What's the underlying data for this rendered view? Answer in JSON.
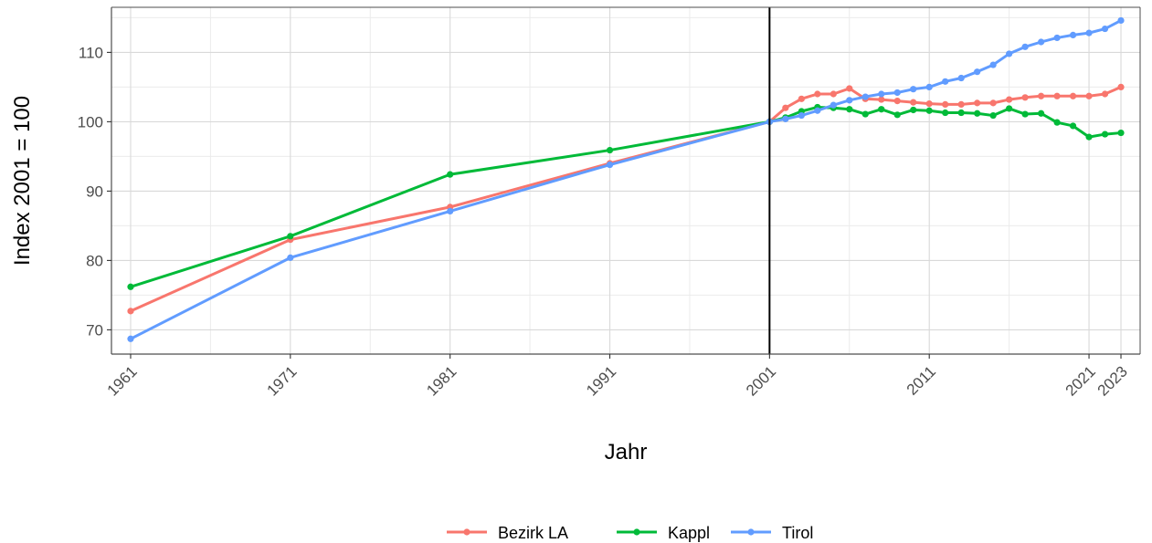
{
  "chart_data": {
    "type": "line",
    "xlabel": "Jahr",
    "ylabel": "Index 2001 = 100",
    "xlim": [
      1959.8,
      2024.2
    ],
    "ylim": [
      66.5,
      116.5
    ],
    "x_ticks": [
      1961,
      1971,
      1981,
      1991,
      2001,
      2011,
      2021,
      2023
    ],
    "y_ticks": [
      70,
      80,
      90,
      100,
      110
    ],
    "vertical_reference_line": 2001,
    "grid": true,
    "legend_position": "bottom",
    "series": [
      {
        "name": "Bezirk LA",
        "color": "#F8766D",
        "x": [
          1961,
          1971,
          1981,
          1991,
          2001,
          2002,
          2003,
          2004,
          2005,
          2006,
          2007,
          2008,
          2009,
          2010,
          2011,
          2012,
          2013,
          2014,
          2015,
          2016,
          2017,
          2018,
          2019,
          2020,
          2021,
          2022,
          2023
        ],
        "y": [
          72.7,
          83.0,
          87.7,
          94.0,
          100.0,
          102.0,
          103.3,
          104.0,
          104.0,
          104.8,
          103.3,
          103.2,
          103.0,
          102.8,
          102.6,
          102.5,
          102.5,
          102.7,
          102.7,
          103.2,
          103.5,
          103.7,
          103.7,
          103.7,
          103.7,
          104.0,
          105.0
        ]
      },
      {
        "name": "Kappl",
        "color": "#00BA38",
        "x": [
          1961,
          1971,
          1981,
          1991,
          2001,
          2002,
          2003,
          2004,
          2005,
          2006,
          2007,
          2008,
          2009,
          2010,
          2011,
          2012,
          2013,
          2014,
          2015,
          2016,
          2017,
          2018,
          2019,
          2020,
          2021,
          2022,
          2023
        ],
        "y": [
          76.2,
          83.5,
          92.4,
          95.9,
          100.0,
          100.6,
          101.5,
          102.1,
          102.0,
          101.8,
          101.1,
          101.8,
          101.0,
          101.7,
          101.6,
          101.3,
          101.3,
          101.2,
          100.9,
          101.9,
          101.1,
          101.2,
          99.9,
          99.4,
          97.8,
          98.2,
          98.4
        ]
      },
      {
        "name": "Tirol",
        "color": "#619CFF",
        "x": [
          1961,
          1971,
          1981,
          1991,
          2001,
          2002,
          2003,
          2004,
          2005,
          2006,
          2007,
          2008,
          2009,
          2010,
          2011,
          2012,
          2013,
          2014,
          2015,
          2016,
          2017,
          2018,
          2019,
          2020,
          2021,
          2022,
          2023
        ],
        "y": [
          68.7,
          80.4,
          87.1,
          93.8,
          100.0,
          100.4,
          100.9,
          101.6,
          102.4,
          103.1,
          103.6,
          104.0,
          104.2,
          104.7,
          105.0,
          105.8,
          106.3,
          107.2,
          108.2,
          109.8,
          110.8,
          111.5,
          112.1,
          112.5,
          112.8,
          113.4,
          114.6
        ]
      }
    ]
  }
}
